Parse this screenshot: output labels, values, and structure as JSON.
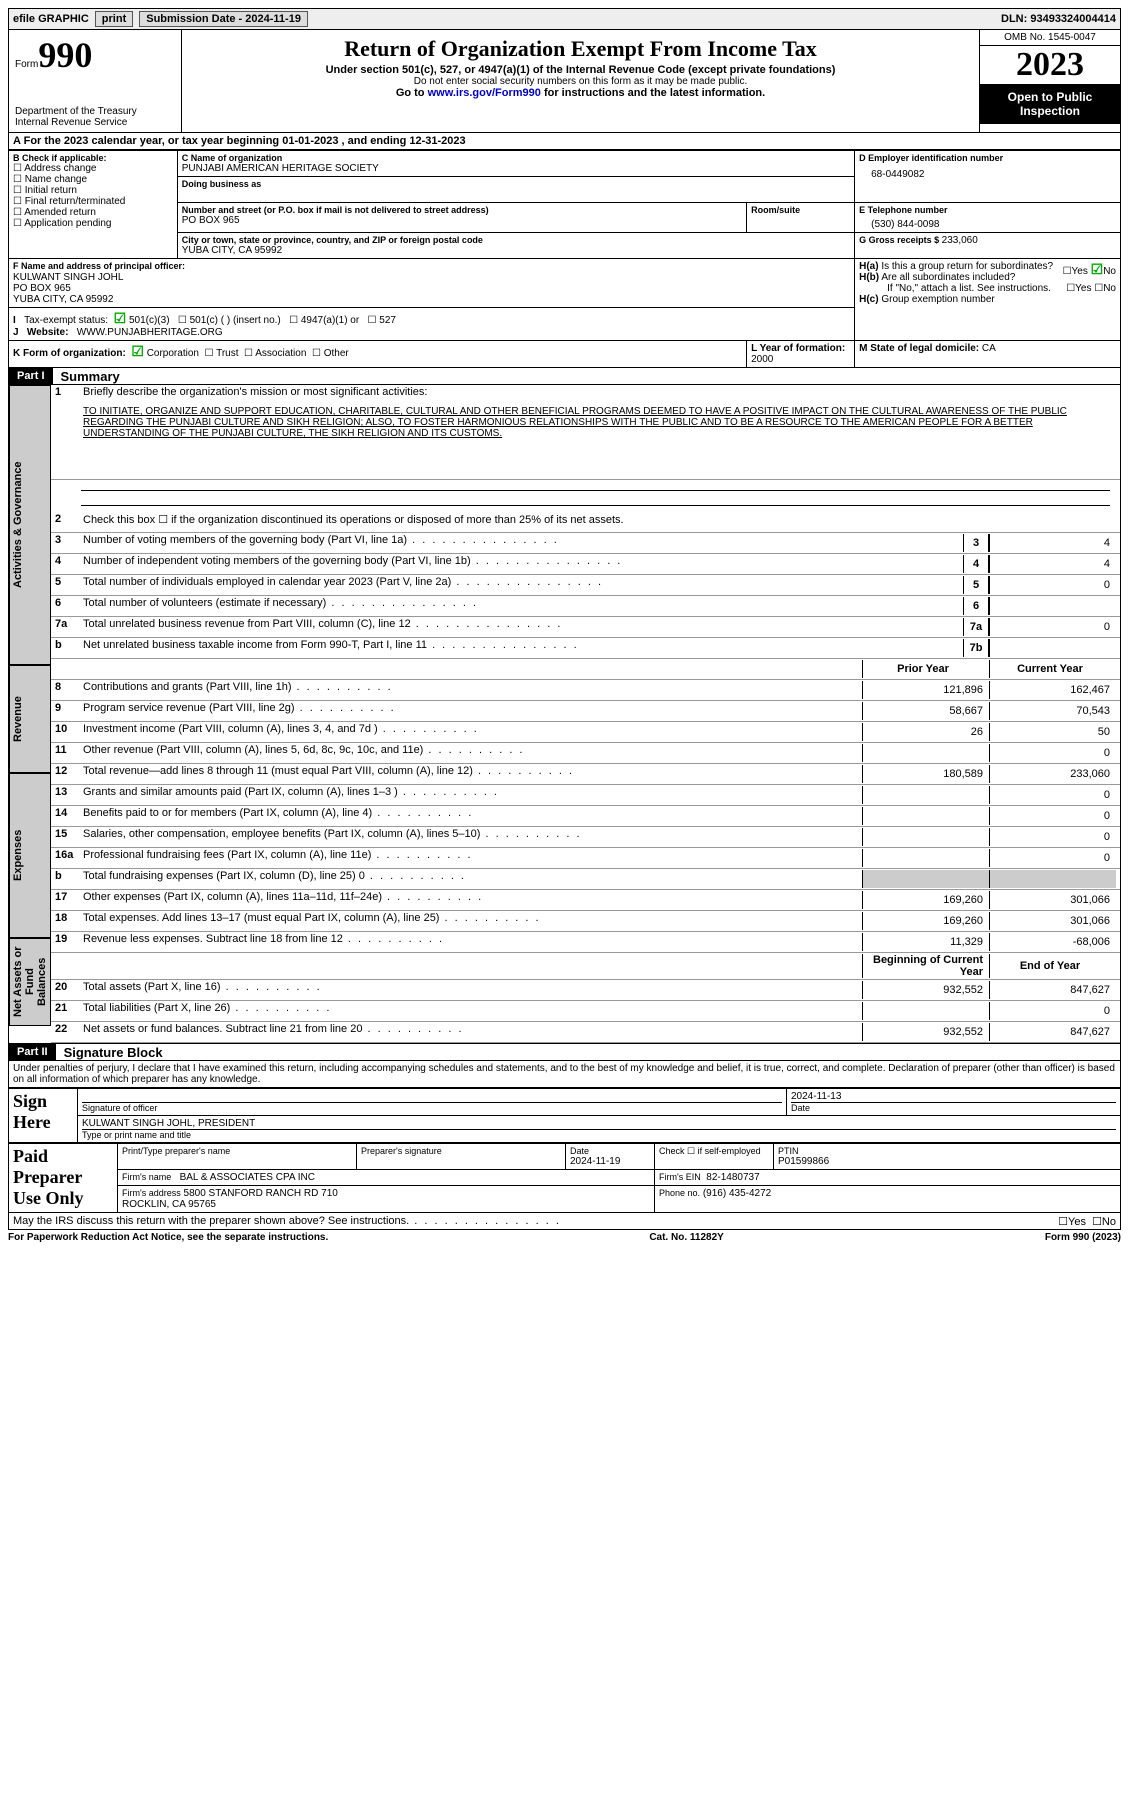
{
  "topbar": {
    "efile": "efile GRAPHIC",
    "print": "print",
    "subdate_label": "Submission Date - ",
    "subdate": "2024-11-19",
    "dln": "DLN: 93493324004414"
  },
  "header": {
    "form_prefix": "Form",
    "form_num": "990",
    "dept": "Department of the Treasury\nInternal Revenue Service",
    "title": "Return of Organization Exempt From Income Tax",
    "sub1": "Under section 501(c), 527, or 4947(a)(1) of the Internal Revenue Code (except private foundations)",
    "sub2": "Do not enter social security numbers on this form as it may be made public.",
    "sub3_pre": "Go to ",
    "sub3_link": "www.irs.gov/Form990",
    "sub3_post": " for instructions and the latest information.",
    "omb": "OMB No. 1545-0047",
    "year": "2023",
    "open": "Open to Public Inspection"
  },
  "A": {
    "line": "For the 2023 calendar year, or tax year beginning ",
    "begin": "01-01-2023",
    "mid": "   , and ending ",
    "end": "12-31-2023"
  },
  "B": {
    "label": "B Check if applicable:",
    "opts": [
      "Address change",
      "Name change",
      "Initial return",
      "Final return/terminated",
      "Amended return",
      "Application pending"
    ]
  },
  "C": {
    "name_lbl": "C Name of organization",
    "name": "PUNJABI AMERICAN HERITAGE SOCIETY",
    "dba_lbl": "Doing business as",
    "street_lbl": "Number and street (or P.O. box if mail is not delivered to street address)",
    "room_lbl": "Room/suite",
    "street": "PO BOX 965",
    "city_lbl": "City or town, state or province, country, and ZIP or foreign postal code",
    "city": "YUBA CITY, CA  95992"
  },
  "D": {
    "lbl": "D Employer identification number",
    "val": "68-0449082"
  },
  "E": {
    "lbl": "E Telephone number",
    "val": "(530) 844-0098"
  },
  "G": {
    "lbl": "G Gross receipts $ ",
    "val": "233,060"
  },
  "F": {
    "lbl": "F  Name and address of principal officer:",
    "name": "KULWANT SINGH JOHL",
    "addr1": "PO BOX 965",
    "addr2": "YUBA CITY, CA  95992"
  },
  "H": {
    "a": "Is this a group return for subordinates?",
    "b": "Are all subordinates included?",
    "bnote": "If \"No,\" attach a list. See instructions.",
    "c": "Group exemption number"
  },
  "I": {
    "lbl": "Tax-exempt status:",
    "o1": "501(c)(3)",
    "o2": "501(c) (  ) (insert no.)",
    "o3": "4947(a)(1) or",
    "o4": "527"
  },
  "J": {
    "lbl": "Website:",
    "val": "WWW.PUNJABHERITAGE.ORG"
  },
  "K": {
    "lbl": "K Form of organization:",
    "o1": "Corporation",
    "o2": "Trust",
    "o3": "Association",
    "o4": "Other"
  },
  "L": {
    "lbl": "L Year of formation: ",
    "val": "2000"
  },
  "M": {
    "lbl": "M State of legal domicile: ",
    "val": "CA"
  },
  "part1": {
    "hdr": "Part I",
    "title": "Summary",
    "l1": "Briefly describe the organization's mission or most significant activities:",
    "mission": "TO INITIATE, ORGANIZE AND SUPPORT EDUCATION, CHARITABLE, CULTURAL AND OTHER BENEFICIAL PROGRAMS DEEMED TO HAVE A POSITIVE IMPACT ON THE CULTURAL AWARENESS OF THE PUBLIC REGARDING THE PUNJABI CULTURE AND SIKH RELIGION; ALSO, TO FOSTER HARMONIOUS RELATIONSHIPS WITH THE PUBLIC AND TO BE A RESOURCE TO THE AMERICAN PEOPLE FOR A BETTER UNDERSTANDING OF THE PUNJABI CULTURE, THE SIKH RELIGION AND ITS CUSTOMS.",
    "l2": "Check this box  ☐  if the organization discontinued its operations or disposed of more than 25% of its net assets.",
    "rows_single": [
      {
        "n": "3",
        "t": "Number of voting members of the governing body (Part VI, line 1a)",
        "box": "3",
        "v": "4"
      },
      {
        "n": "4",
        "t": "Number of independent voting members of the governing body (Part VI, line 1b)",
        "box": "4",
        "v": "4"
      },
      {
        "n": "5",
        "t": "Total number of individuals employed in calendar year 2023 (Part V, line 2a)",
        "box": "5",
        "v": "0"
      },
      {
        "n": "6",
        "t": "Total number of volunteers (estimate if necessary)",
        "box": "6",
        "v": ""
      },
      {
        "n": "7a",
        "t": "Total unrelated business revenue from Part VIII, column (C), line 12",
        "box": "7a",
        "v": "0"
      },
      {
        "n": "b",
        "t": "Net unrelated business taxable income from Form 990-T, Part I, line 11",
        "box": "7b",
        "v": ""
      }
    ],
    "hdr_prior": "Prior Year",
    "hdr_curr": "Current Year",
    "revenue": [
      {
        "n": "8",
        "t": "Contributions and grants (Part VIII, line 1h)",
        "p": "121,896",
        "c": "162,467"
      },
      {
        "n": "9",
        "t": "Program service revenue (Part VIII, line 2g)",
        "p": "58,667",
        "c": "70,543"
      },
      {
        "n": "10",
        "t": "Investment income (Part VIII, column (A), lines 3, 4, and 7d )",
        "p": "26",
        "c": "50"
      },
      {
        "n": "11",
        "t": "Other revenue (Part VIII, column (A), lines 5, 6d, 8c, 9c, 10c, and 11e)",
        "p": "",
        "c": "0"
      },
      {
        "n": "12",
        "t": "Total revenue—add lines 8 through 11 (must equal Part VIII, column (A), line 12)",
        "p": "180,589",
        "c": "233,060"
      }
    ],
    "expenses": [
      {
        "n": "13",
        "t": "Grants and similar amounts paid (Part IX, column (A), lines 1–3 )",
        "p": "",
        "c": "0"
      },
      {
        "n": "14",
        "t": "Benefits paid to or for members (Part IX, column (A), line 4)",
        "p": "",
        "c": "0"
      },
      {
        "n": "15",
        "t": "Salaries, other compensation, employee benefits (Part IX, column (A), lines 5–10)",
        "p": "",
        "c": "0"
      },
      {
        "n": "16a",
        "t": "Professional fundraising fees (Part IX, column (A), line 11e)",
        "p": "",
        "c": "0"
      },
      {
        "n": "b",
        "t": "Total fundraising expenses (Part IX, column (D), line 25) 0",
        "p": "SHADE",
        "c": "SHADE"
      },
      {
        "n": "17",
        "t": "Other expenses (Part IX, column (A), lines 11a–11d, 11f–24e)",
        "p": "169,260",
        "c": "301,066"
      },
      {
        "n": "18",
        "t": "Total expenses. Add lines 13–17 (must equal Part IX, column (A), line 25)",
        "p": "169,260",
        "c": "301,066"
      },
      {
        "n": "19",
        "t": "Revenue less expenses. Subtract line 18 from line 12",
        "p": "11,329",
        "c": "-68,006"
      }
    ],
    "hdr_begin": "Beginning of Current Year",
    "hdr_end": "End of Year",
    "net": [
      {
        "n": "20",
        "t": "Total assets (Part X, line 16)",
        "p": "932,552",
        "c": "847,627"
      },
      {
        "n": "21",
        "t": "Total liabilities (Part X, line 26)",
        "p": "",
        "c": "0"
      },
      {
        "n": "22",
        "t": "Net assets or fund balances. Subtract line 21 from line 20",
        "p": "932,552",
        "c": "847,627"
      }
    ],
    "tab1": "Activities & Governance",
    "tab2": "Revenue",
    "tab3": "Expenses",
    "tab4": "Net Assets or Fund Balances"
  },
  "part2": {
    "hdr": "Part II",
    "title": "Signature Block",
    "decl": "Under penalties of perjury, I declare that I have examined this return, including accompanying schedules and statements, and to the best of my knowledge and belief, it is true, correct, and complete. Declaration of preparer (other than officer) is based on all information of which preparer has any knowledge.",
    "sign_here": "Sign Here",
    "sig_lbl": "Signature of officer",
    "date_lbl": "Date",
    "sig_date": "2024-11-13",
    "officer": "KULWANT SINGH JOHL, PRESIDENT",
    "type_lbl": "Type or print name and title",
    "paid": "Paid Preparer Use Only",
    "pp_name_lbl": "Print/Type preparer's name",
    "pp_sig_lbl": "Preparer's signature",
    "pp_date_lbl": "Date",
    "pp_date": "2024-11-19",
    "pp_check": "Check ☐ if self-employed",
    "ptin_lbl": "PTIN",
    "ptin": "P01599866",
    "firm_name_lbl": "Firm's name",
    "firm_name": "BAL & ASSOCIATES CPA INC",
    "firm_ein_lbl": "Firm's EIN",
    "firm_ein": "82-1480737",
    "firm_addr_lbl": "Firm's address",
    "firm_addr": "5800 STANFORD RANCH RD 710\nROCKLIN, CA  95765",
    "phone_lbl": "Phone no.",
    "phone": "(916) 435-4272",
    "discuss": "May the IRS discuss this return with the preparer shown above? See instructions."
  },
  "footer": {
    "left": "For Paperwork Reduction Act Notice, see the separate instructions.",
    "mid": "Cat. No. 11282Y",
    "right": "Form 990 (2023)"
  }
}
